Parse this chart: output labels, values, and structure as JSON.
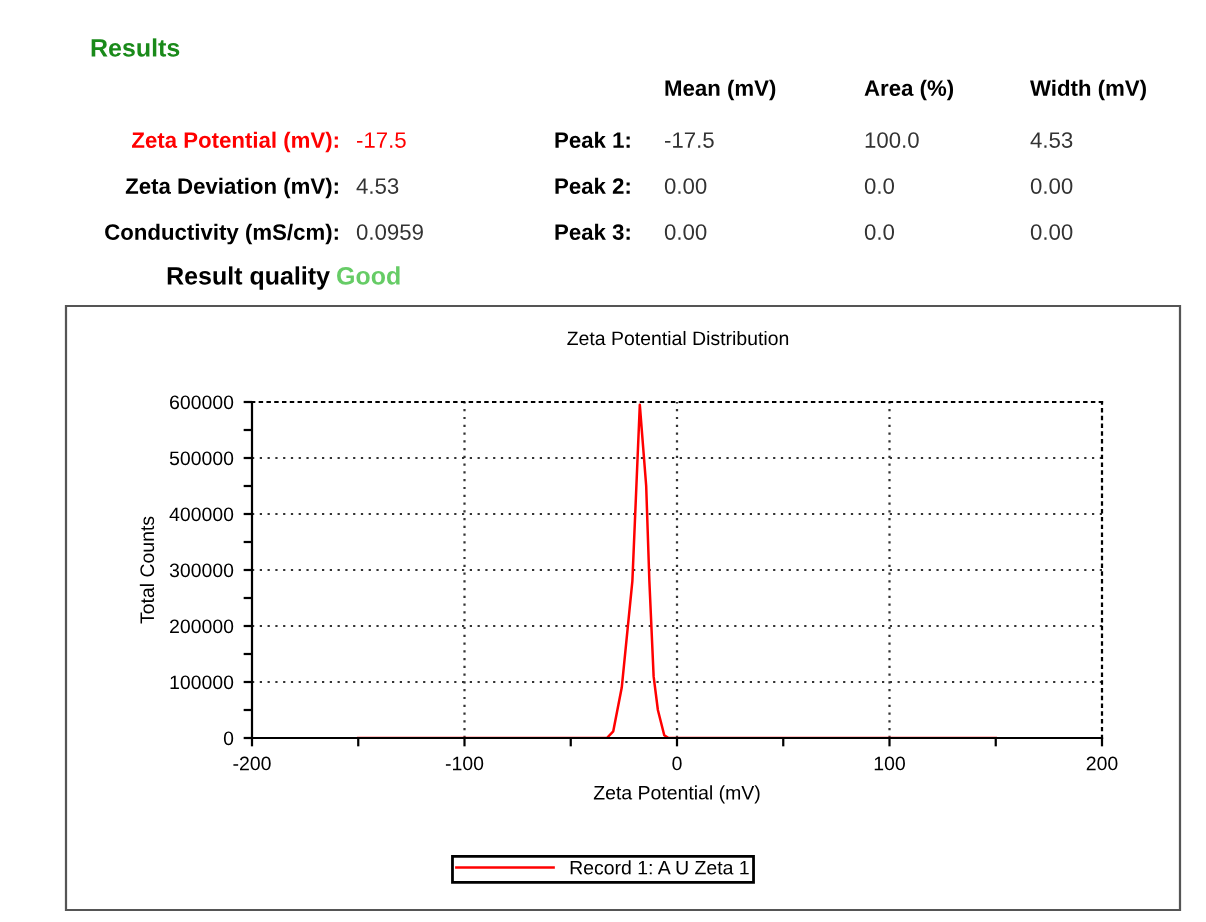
{
  "chart_data": [
    {
      "type": "other",
      "title": "Results",
      "annotations": [
        "Mean (mV)",
        "Area (%)",
        "Width (mV)",
        "Zeta Potential (mV):",
        "-17.5",
        "Peak 1:",
        "-17.5",
        "100.0",
        "4.53",
        "Zeta Deviation (mV):",
        "4.53",
        "Peak 2:",
        "0.00",
        "0.0",
        "0.00",
        "Conductivity (mS/cm):",
        "0.0959",
        "Peak 3:",
        "0.00",
        "0.0",
        "0.00",
        "Result quality",
        "Good"
      ]
    },
    {
      "type": "line",
      "title": "Zeta Potential Distribution",
      "xlabel": "Zeta Potential (mV)",
      "ylabel": "Total Counts",
      "series": [
        {
          "name": "Record 1: A U Zeta 1",
          "color": "#ff0000",
          "x": [
            -150,
            -33,
            -30,
            -26,
            -21,
            -17.5,
            -14.5,
            -13,
            -11,
            -9,
            -6,
            -4,
            150
          ],
          "values": [
            0,
            0,
            12000,
            90000,
            280000,
            595000,
            450000,
            280000,
            110000,
            50000,
            5000,
            0,
            0
          ]
        }
      ],
      "xlim": [
        -200,
        200
      ],
      "xticks": [
        -200,
        {
          "value": -150,
          "label": null
        },
        -100,
        {
          "value": -50,
          "label": null
        },
        0,
        {
          "value": 50,
          "label": null
        },
        100,
        {
          "value": 150,
          "label": null
        },
        200
      ],
      "ylim": [
        0,
        600000
      ],
      "yticks": [
        0,
        {
          "value": 50000,
          "label": null
        },
        100000,
        {
          "value": 150000,
          "label": null
        },
        200000,
        {
          "value": 250000,
          "label": null
        },
        300000,
        {
          "value": 350000,
          "label": null
        },
        400000,
        {
          "value": 450000,
          "label": null
        },
        500000,
        {
          "value": 550000,
          "label": null
        },
        600000
      ],
      "grid": true,
      "legend": "bottom",
      "marker": "none",
      "line_style": "solid"
    }
  ]
}
